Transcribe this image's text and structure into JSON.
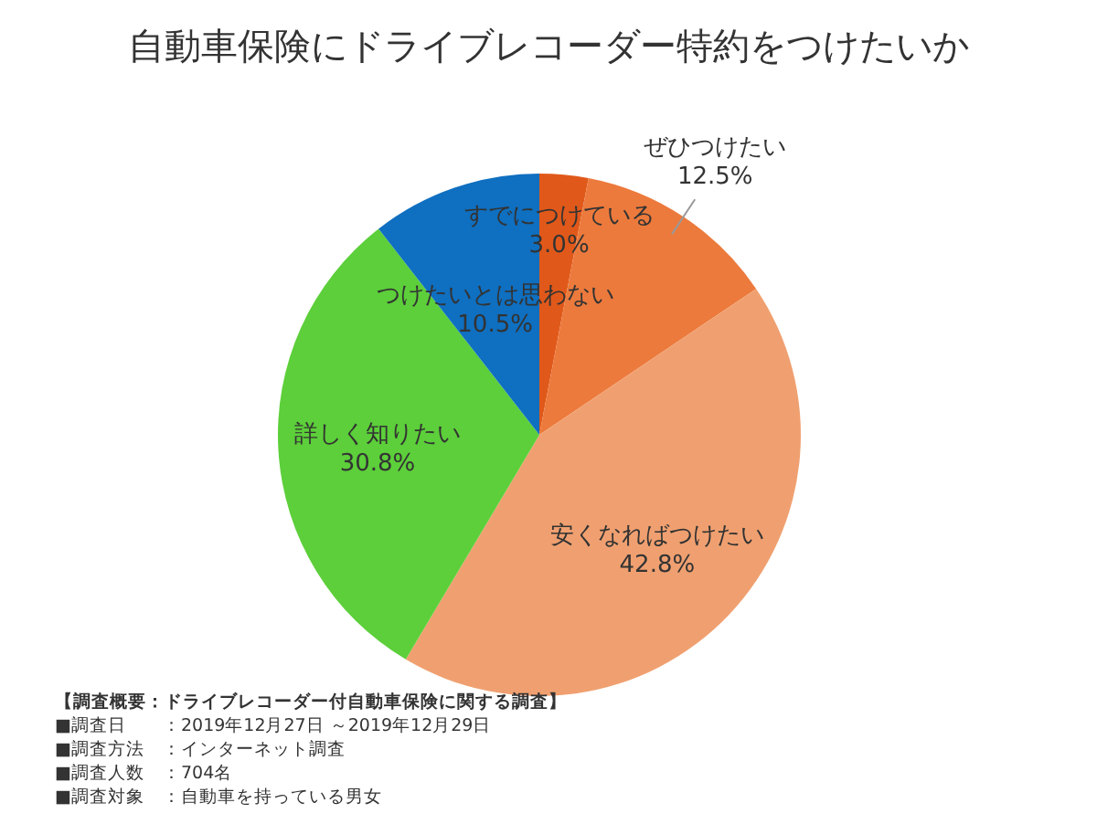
{
  "chart_data": {
    "type": "pie",
    "title": "自動車保険にドライブレコーダー特約をつけたいか",
    "categories": [
      "すでにつけている",
      "ぜひつけたい",
      "安くなればつけたい",
      "詳しく知りたい",
      "つけたいとは思わない"
    ],
    "values": [
      3.0,
      12.5,
      42.8,
      30.8,
      10.5
    ],
    "colors": [
      "#e0591a",
      "#ec7a3c",
      "#f0a070",
      "#5ccf3a",
      "#0f6fc0"
    ],
    "value_labels": [
      "3.0%",
      "12.5%",
      "42.8%",
      "30.8%",
      "10.5%"
    ],
    "annotations": [
      "【調査概要：ドライブレコーダー付自動車保険に関する調査】",
      "■調査日　　：2019年12月27日 ～2019年12月29日",
      "■調査方法　：インターネット調査",
      "■調査人数　：704名",
      "■調査対象　：自動車を持っている男女"
    ]
  }
}
